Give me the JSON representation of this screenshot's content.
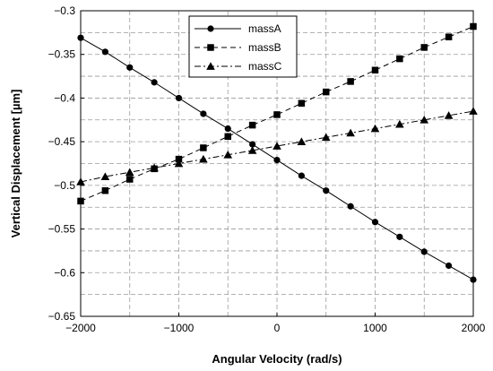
{
  "chart_data": {
    "type": "line",
    "title": "",
    "xlabel": "Angular Velocity (rad/s)",
    "ylabel": "Vertical Displacement [µm]",
    "xlim": [
      -2000,
      2000
    ],
    "ylim": [
      -0.65,
      -0.3
    ],
    "x_ticks": [
      -2000,
      -1000,
      0,
      1000,
      2000
    ],
    "x_tick_labels": [
      "−2000",
      "−1000",
      "0",
      "1000",
      "2000"
    ],
    "x_minor_grid": [
      -1500,
      -500,
      500,
      1500
    ],
    "y_ticks": [
      -0.65,
      -0.6,
      -0.55,
      -0.5,
      -0.45,
      -0.4,
      -0.35,
      -0.3
    ],
    "y_tick_labels": [
      "−0.65",
      "−0.6",
      "−0.55",
      "−0.5",
      "−0.45",
      "−0.4",
      "−0.35",
      "−0.3"
    ],
    "y_minor_grid": [
      -0.625,
      -0.575,
      -0.525,
      -0.475,
      -0.425,
      -0.375,
      -0.325
    ],
    "grid": true,
    "legend_position": "top-center",
    "x": [
      -2000,
      -1750,
      -1500,
      -1250,
      -1000,
      -750,
      -500,
      -250,
      0,
      250,
      500,
      750,
      1000,
      1250,
      1500,
      1750,
      2000
    ],
    "series": [
      {
        "name": "massA",
        "marker": "circle",
        "dash": "solid",
        "values": [
          -0.331,
          -0.347,
          -0.365,
          -0.382,
          -0.4,
          -0.418,
          -0.435,
          -0.453,
          -0.471,
          -0.489,
          -0.506,
          -0.524,
          -0.542,
          -0.559,
          -0.576,
          -0.592,
          -0.608
        ]
      },
      {
        "name": "massB",
        "marker": "square",
        "dash": "dashed",
        "values": [
          -0.518,
          -0.506,
          -0.493,
          -0.481,
          -0.47,
          -0.457,
          -0.444,
          -0.431,
          -0.419,
          -0.406,
          -0.393,
          -0.381,
          -0.368,
          -0.355,
          -0.342,
          -0.33,
          -0.318
        ]
      },
      {
        "name": "massC",
        "marker": "triangle",
        "dash": "dashdot",
        "values": [
          -0.496,
          -0.49,
          -0.485,
          -0.48,
          -0.475,
          -0.47,
          -0.465,
          -0.46,
          -0.455,
          -0.45,
          -0.445,
          -0.44,
          -0.435,
          -0.43,
          -0.425,
          -0.42,
          -0.415
        ]
      }
    ]
  }
}
